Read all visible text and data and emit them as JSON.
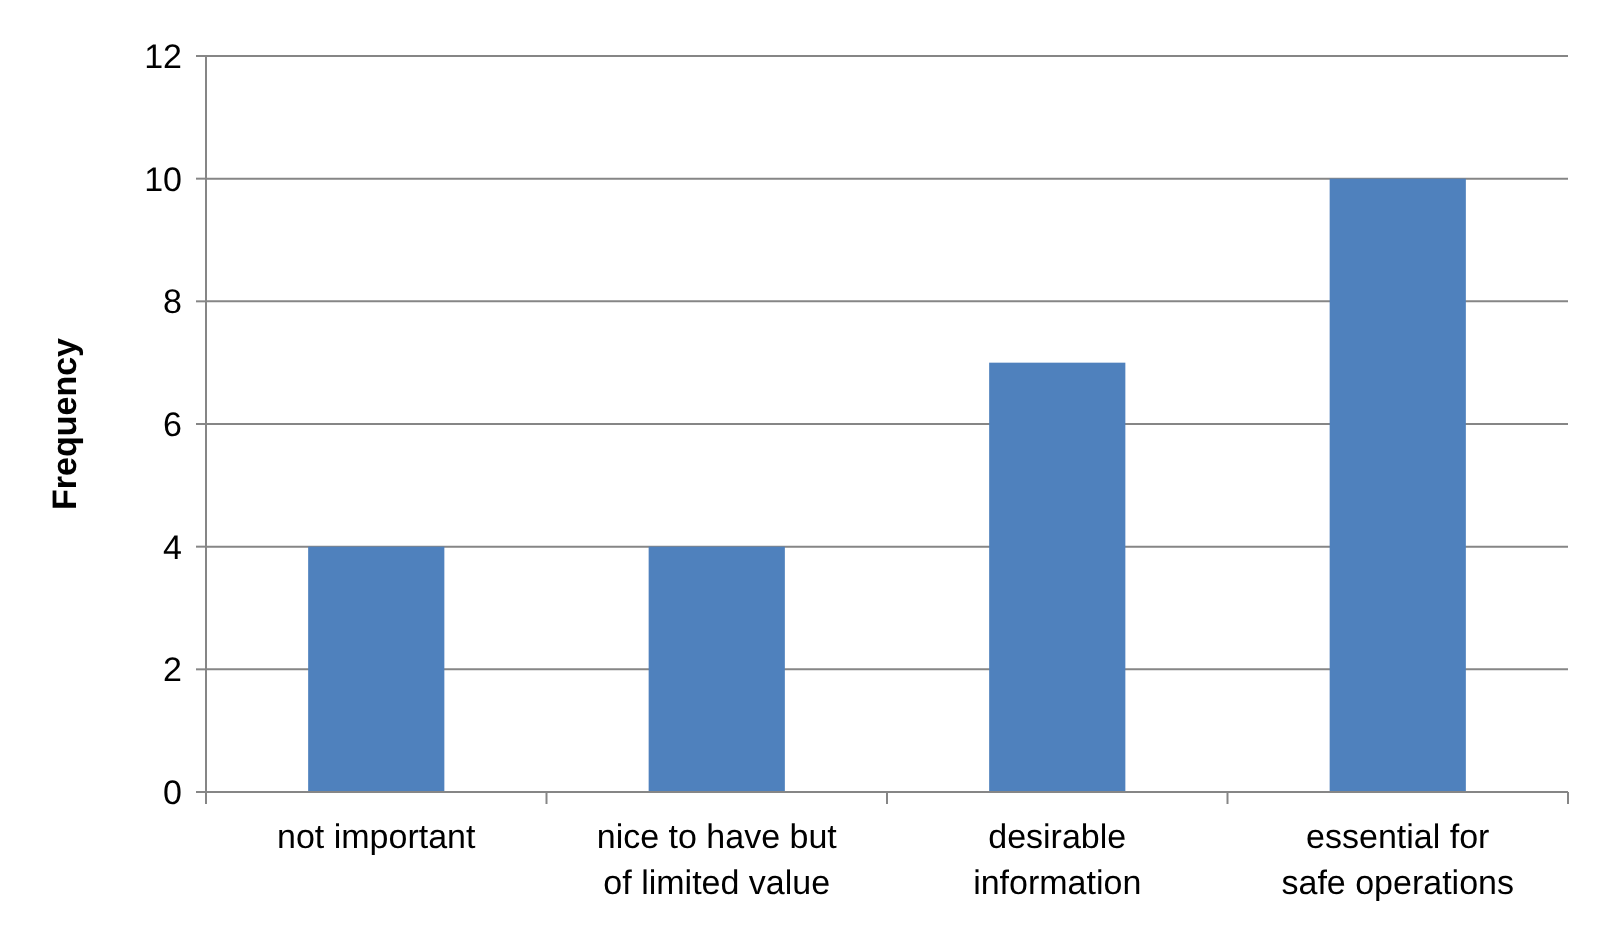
{
  "chart_data": {
    "type": "bar",
    "ylabel": "Frequency",
    "categories": [
      "not important",
      "nice to have but of limited value",
      "desirable information",
      "essential for safe operations"
    ],
    "values": [
      4,
      4,
      7,
      10
    ],
    "color": "#4f81bd",
    "ylim": [
      0,
      12
    ],
    "yticks": [
      0,
      2,
      4,
      6,
      8,
      10,
      12
    ],
    "grid": "y"
  }
}
